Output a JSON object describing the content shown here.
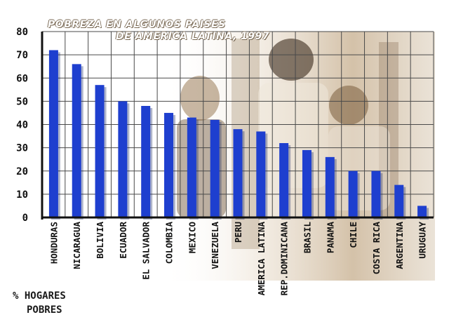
{
  "chart_data": {
    "type": "bar",
    "title_lines": [
      "POBREZA EN ALGUNOS PAISES",
      "DE AMERICA LATINA, 1997"
    ],
    "ylabel_lines": [
      "% HOGARES",
      "POBRES"
    ],
    "xlabel": "",
    "categories": [
      "HONDURAS",
      "NICARAGUA",
      "BOLIVIA",
      "ECUADOR",
      "EL SALVADOR",
      "COLOMBIA",
      "MEXICO",
      "VENEZUELA",
      "PERU",
      "AMERICA LATINA",
      "REP.DOMINICANA",
      "BRASIL",
      "PANAMA",
      "CHILE",
      "COSTA RICA",
      "ARGENTINA",
      "URUGUAY"
    ],
    "values": [
      72,
      66,
      57,
      50,
      48,
      45,
      43,
      42,
      38,
      37,
      32,
      29,
      26,
      20,
      20,
      14,
      5
    ],
    "yticks": [
      0,
      10,
      20,
      30,
      40,
      50,
      60,
      70,
      80
    ],
    "ylim": [
      0,
      80
    ],
    "grid": true,
    "legend": "none",
    "bar_color": "#1e3fcf",
    "grid_color": "#4a4a4a"
  }
}
